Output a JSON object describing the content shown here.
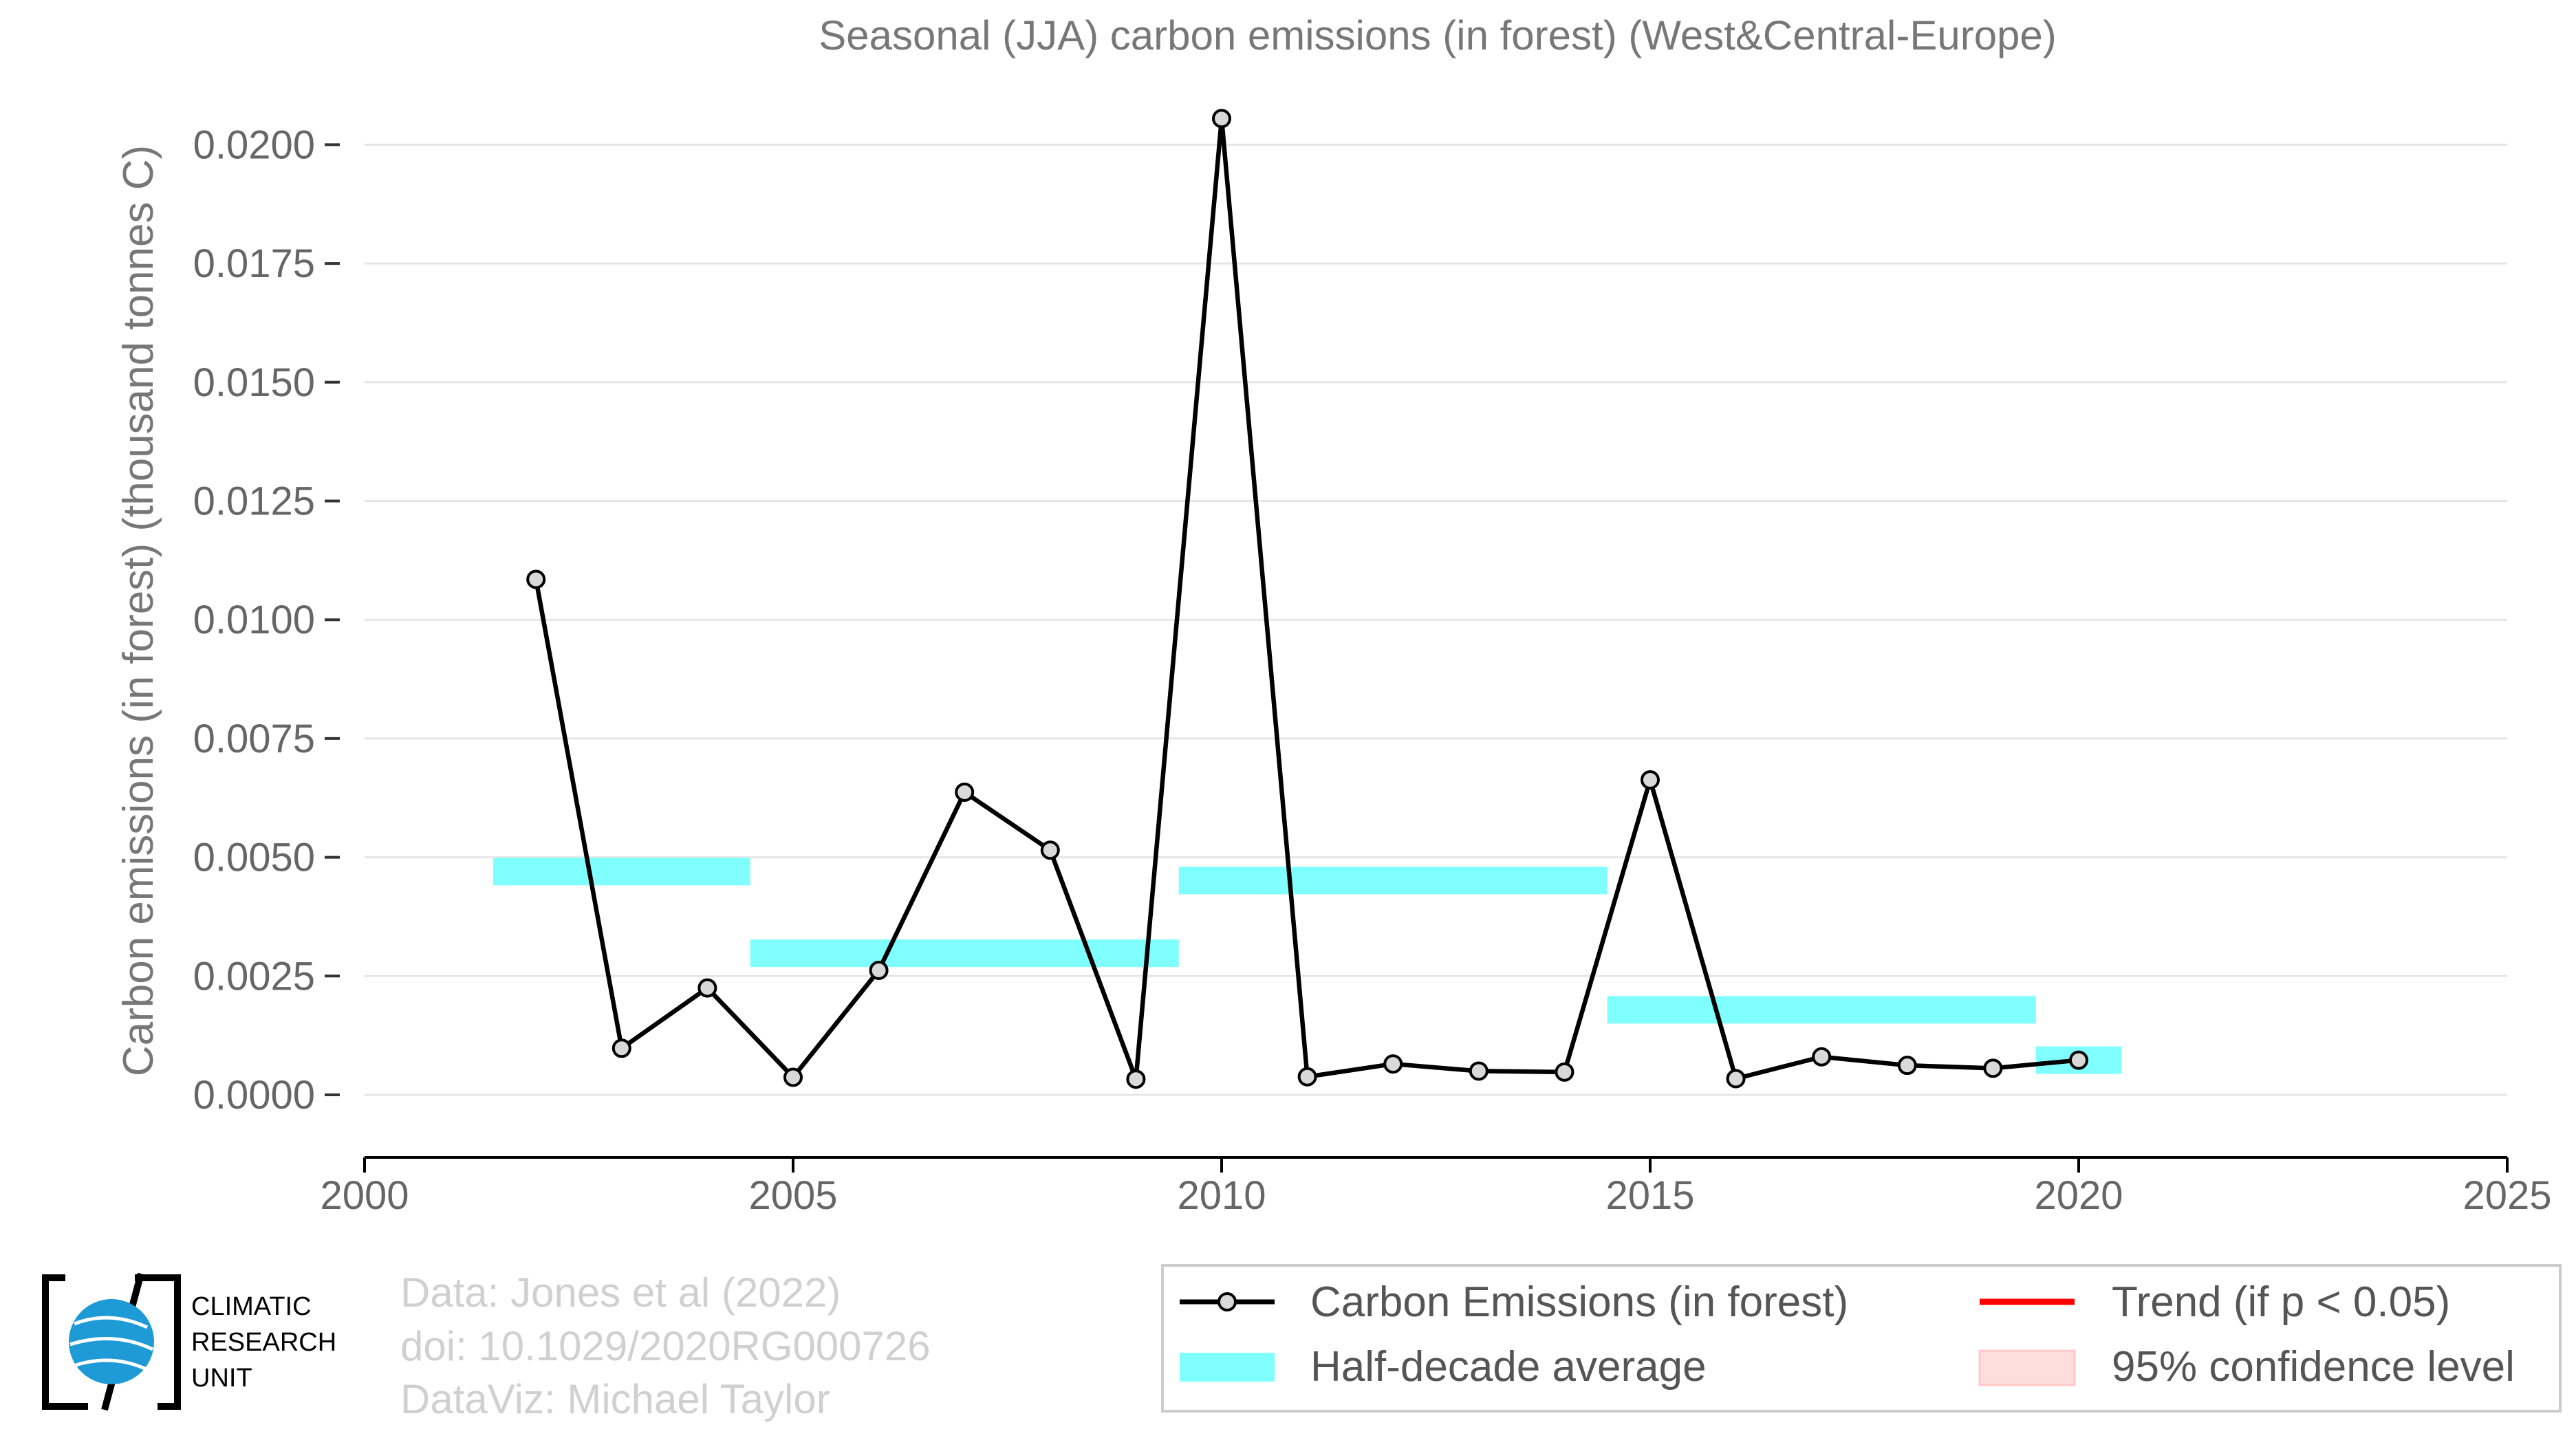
{
  "chart_data": {
    "type": "line",
    "title": "Seasonal (JJA) carbon emissions (in forest) (West&Central-Europe)",
    "xlabel": "",
    "ylabel": "Carbon emissions (in forest) (thousand tonnes C)",
    "xlim": [
      2000,
      2025
    ],
    "ylim": [
      0.0,
      0.0205
    ],
    "x_ticks": [
      "2000",
      "2005",
      "2010",
      "2015",
      "2020",
      "2025"
    ],
    "y_ticks": [
      "0.0000",
      "0.0025",
      "0.0050",
      "0.0075",
      "0.0100",
      "0.0125",
      "0.0150",
      "0.0175",
      "0.0200"
    ],
    "grid": "horizontal",
    "series": [
      {
        "name": "Carbon Emissions (in forest)",
        "color": "#000000",
        "x": [
          2002,
          2003,
          2004,
          2005,
          2006,
          2007,
          2008,
          2009,
          2010,
          2011,
          2012,
          2013,
          2014,
          2015,
          2016,
          2017,
          2018,
          2019,
          2020
        ],
        "y": [
          0.01085,
          0.00098,
          0.00225,
          0.00037,
          0.00262,
          0.00637,
          0.00515,
          0.00033,
          0.02055,
          0.00038,
          0.00065,
          0.0005,
          0.00048,
          0.00663,
          0.00034,
          0.0008,
          0.00062,
          0.00056,
          0.00073
        ]
      }
    ],
    "half_decade_average": {
      "name": "Half-decade average",
      "color": "#7fffff",
      "segments": [
        {
          "x_start": 2001.5,
          "x_end": 2004.5,
          "value": 0.0047
        },
        {
          "x_start": 2004.5,
          "x_end": 2009.5,
          "value": 0.00298
        },
        {
          "x_start": 2009.5,
          "x_end": 2014.5,
          "value": 0.00451
        },
        {
          "x_start": 2014.5,
          "x_end": 2019.5,
          "value": 0.00179
        },
        {
          "x_start": 2019.5,
          "x_end": 2020.5,
          "value": 0.00073
        }
      ]
    },
    "legend": {
      "placement": "bottom-right",
      "entries": [
        {
          "key": "line",
          "label": "Carbon Emissions (in forest)",
          "color": "#000000"
        },
        {
          "key": "band",
          "label": "Half-decade average",
          "color": "#7fffff"
        },
        {
          "key": "trend",
          "label": "Trend (if p < 0.05)",
          "color": "#ff0000"
        },
        {
          "key": "ci",
          "label": "95% confidence level",
          "color": "#ffdddd"
        }
      ]
    }
  },
  "credits": {
    "line1": "Data: Jones et al (2022)",
    "line2": "doi: 10.1029/2020RG000726",
    "line3": "DataViz: Michael Taylor"
  },
  "logo": {
    "line1": "CLIMATIC",
    "line2": "RESEARCH",
    "line3": "UNIT",
    "color": "#1e9ad6"
  }
}
